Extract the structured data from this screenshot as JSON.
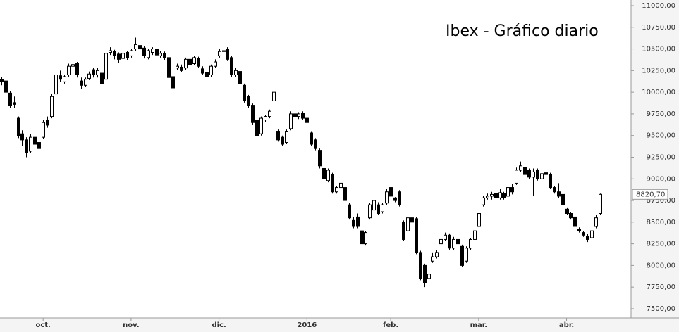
{
  "chart_data": {
    "type": "candlestick",
    "title": "Ibex - Gráfico diario",
    "up_color": "#ffffff",
    "down_color": "#000000",
    "line_color": "#000000",
    "xlim": [
      -0.3,
      150.4
    ],
    "xticks": [
      {
        "value": 10,
        "label": "oct."
      },
      {
        "value": 31,
        "label": "nov."
      },
      {
        "value": 52,
        "label": "dic."
      },
      {
        "value": 73,
        "label": "2016"
      },
      {
        "value": 93,
        "label": "feb."
      },
      {
        "value": 114,
        "label": "mar."
      },
      {
        "value": 135,
        "label": "abr."
      }
    ],
    "ylim": [
      7394,
      11065
    ],
    "yticks": [
      {
        "value": 7500,
        "label": "7500,00"
      },
      {
        "value": 7750,
        "label": "7750,00"
      },
      {
        "value": 8000,
        "label": "8000,00"
      },
      {
        "value": 8250,
        "label": "8250,00"
      },
      {
        "value": 8500,
        "label": "8500,00"
      },
      {
        "value": 8750,
        "label": "8750,00"
      },
      {
        "value": 9000,
        "label": "9000,00"
      },
      {
        "value": 9250,
        "label": "9250,00"
      },
      {
        "value": 9500,
        "label": "9500,00"
      },
      {
        "value": 9750,
        "label": "9750,00"
      },
      {
        "value": 10000,
        "label": "10000,00"
      },
      {
        "value": 10250,
        "label": "10250,00"
      },
      {
        "value": 10500,
        "label": "10500,00"
      },
      {
        "value": 10750,
        "label": "10750,00"
      },
      {
        "value": 11000,
        "label": "11000,00"
      }
    ],
    "last_label": "8820,70",
    "candles": [
      [
        10150,
        10180,
        10080,
        10120
      ],
      [
        10130,
        10150,
        9980,
        10000
      ],
      [
        9990,
        10010,
        9820,
        9850
      ],
      [
        9880,
        9950,
        9820,
        9860
      ],
      [
        9700,
        9720,
        9470,
        9500
      ],
      [
        9520,
        9560,
        9380,
        9450
      ],
      [
        9450,
        9480,
        9250,
        9300
      ],
      [
        9320,
        9520,
        9300,
        9480
      ],
      [
        9480,
        9510,
        9370,
        9400
      ],
      [
        9420,
        9440,
        9260,
        9350
      ],
      [
        9480,
        9680,
        9460,
        9650
      ],
      [
        9680,
        9720,
        9590,
        9620
      ],
      [
        9720,
        9980,
        9700,
        9950
      ],
      [
        9980,
        10230,
        9960,
        10200
      ],
      [
        10190,
        10250,
        10120,
        10150
      ],
      [
        10120,
        10200,
        10100,
        10180
      ],
      [
        10200,
        10330,
        10180,
        10300
      ],
      [
        10300,
        10380,
        10280,
        10320
      ],
      [
        10330,
        10350,
        10170,
        10200
      ],
      [
        10130,
        10170,
        10040,
        10080
      ],
      [
        10080,
        10170,
        10060,
        10150
      ],
      [
        10160,
        10240,
        10140,
        10210
      ],
      [
        10260,
        10280,
        10170,
        10200
      ],
      [
        10200,
        10280,
        10170,
        10250
      ],
      [
        10220,
        10260,
        10060,
        10100
      ],
      [
        10150,
        10600,
        10130,
        10450
      ],
      [
        10460,
        10520,
        10430,
        10480
      ],
      [
        10470,
        10490,
        10380,
        10420
      ],
      [
        10440,
        10460,
        10340,
        10380
      ],
      [
        10390,
        10480,
        10360,
        10450
      ],
      [
        10460,
        10480,
        10370,
        10400
      ],
      [
        10420,
        10500,
        10400,
        10480
      ],
      [
        10500,
        10630,
        10480,
        10550
      ],
      [
        10540,
        10570,
        10470,
        10500
      ],
      [
        10510,
        10530,
        10390,
        10420
      ],
      [
        10400,
        10500,
        10380,
        10480
      ],
      [
        10460,
        10520,
        10430,
        10500
      ],
      [
        10500,
        10530,
        10400,
        10430
      ],
      [
        10420,
        10480,
        10400,
        10450
      ],
      [
        10450,
        10470,
        10370,
        10400
      ],
      [
        10400,
        10420,
        10140,
        10170
      ],
      [
        10180,
        10200,
        10020,
        10050
      ],
      [
        10280,
        10330,
        10260,
        10300
      ],
      [
        10290,
        10320,
        10230,
        10250
      ],
      [
        10280,
        10400,
        10260,
        10380
      ],
      [
        10380,
        10400,
        10300,
        10320
      ],
      [
        10330,
        10420,
        10310,
        10400
      ],
      [
        10390,
        10410,
        10280,
        10300
      ],
      [
        10270,
        10300,
        10200,
        10220
      ],
      [
        10230,
        10250,
        10140,
        10180
      ],
      [
        10200,
        10320,
        10180,
        10300
      ],
      [
        10300,
        10380,
        10280,
        10350
      ],
      [
        10420,
        10500,
        10400,
        10470
      ],
      [
        10470,
        10520,
        10440,
        10480
      ],
      [
        10500,
        10520,
        10360,
        10380
      ],
      [
        10400,
        10420,
        10180,
        10200
      ],
      [
        10200,
        10280,
        10180,
        10250
      ],
      [
        10240,
        10260,
        10080,
        10100
      ],
      [
        10080,
        10100,
        9880,
        9900
      ],
      [
        9950,
        9970,
        9820,
        9850
      ],
      [
        9850,
        9870,
        9620,
        9650
      ],
      [
        9680,
        9700,
        9480,
        9500
      ],
      [
        9520,
        9720,
        9500,
        9700
      ],
      [
        9680,
        9740,
        9660,
        9720
      ],
      [
        9720,
        9800,
        9700,
        9780
      ],
      [
        9900,
        10050,
        9880,
        10000
      ],
      [
        9550,
        9570,
        9430,
        9450
      ],
      [
        9480,
        9500,
        9380,
        9400
      ],
      [
        9420,
        9570,
        9400,
        9550
      ],
      [
        9580,
        9780,
        9560,
        9750
      ],
      [
        9750,
        9770,
        9700,
        9720
      ],
      [
        9720,
        9770,
        9690,
        9750
      ],
      [
        9760,
        9780,
        9680,
        9700
      ],
      [
        9700,
        9720,
        9630,
        9650
      ],
      [
        9530,
        9550,
        9380,
        9400
      ],
      [
        9450,
        9470,
        9330,
        9350
      ],
      [
        9330,
        9350,
        9120,
        9150
      ],
      [
        9120,
        9140,
        8980,
        9000
      ],
      [
        8980,
        9120,
        8960,
        9100
      ],
      [
        9050,
        9070,
        8830,
        8850
      ],
      [
        8850,
        8920,
        8830,
        8900
      ],
      [
        8900,
        8970,
        8880,
        8950
      ],
      [
        8900,
        8920,
        8730,
        8750
      ],
      [
        8700,
        8720,
        8530,
        8550
      ],
      [
        8520,
        8560,
        8430,
        8450
      ],
      [
        8560,
        8600,
        8430,
        8450
      ],
      [
        8400,
        8420,
        8200,
        8250
      ],
      [
        8250,
        8400,
        8230,
        8380
      ],
      [
        8550,
        8720,
        8530,
        8700
      ],
      [
        8640,
        8780,
        8620,
        8750
      ],
      [
        8700,
        8730,
        8580,
        8600
      ],
      [
        8620,
        8720,
        8600,
        8700
      ],
      [
        8720,
        8880,
        8700,
        8850
      ],
      [
        8900,
        8940,
        8780,
        8800
      ],
      [
        8780,
        8790,
        8730,
        8750
      ],
      [
        8850,
        8870,
        8680,
        8700
      ],
      [
        8500,
        8520,
        8280,
        8300
      ],
      [
        8400,
        8570,
        8380,
        8550
      ],
      [
        8550,
        8600,
        8480,
        8500
      ],
      [
        8540,
        8560,
        8130,
        8150
      ],
      [
        8150,
        8170,
        7830,
        7850
      ],
      [
        8000,
        8020,
        7750,
        7800
      ],
      [
        7850,
        7920,
        7830,
        7900
      ],
      [
        8050,
        8150,
        8030,
        8100
      ],
      [
        8100,
        8180,
        8080,
        8150
      ],
      [
        8250,
        8400,
        8230,
        8300
      ],
      [
        8300,
        8380,
        8280,
        8350
      ],
      [
        8350,
        8370,
        8180,
        8200
      ],
      [
        8200,
        8330,
        8180,
        8300
      ],
      [
        8300,
        8320,
        8230,
        8250
      ],
      [
        8220,
        8240,
        7980,
        8000
      ],
      [
        8050,
        8220,
        8030,
        8200
      ],
      [
        8200,
        8320,
        8180,
        8300
      ],
      [
        8300,
        8430,
        8280,
        8400
      ],
      [
        8450,
        8620,
        8430,
        8600
      ],
      [
        8700,
        8800,
        8680,
        8780
      ],
      [
        8780,
        8830,
        8760,
        8800
      ],
      [
        8800,
        8850,
        8760,
        8820
      ],
      [
        8830,
        8860,
        8770,
        8780
      ],
      [
        8780,
        8880,
        8760,
        8840
      ],
      [
        8830,
        8850,
        8760,
        8780
      ],
      [
        8800,
        9020,
        8780,
        8900
      ],
      [
        8900,
        8940,
        8820,
        8850
      ],
      [
        8950,
        9130,
        8930,
        9100
      ],
      [
        9100,
        9200,
        9080,
        9150
      ],
      [
        9130,
        9150,
        9030,
        9050
      ],
      [
        9100,
        9120,
        9000,
        9020
      ],
      [
        9020,
        9120,
        8800,
        9080
      ],
      [
        9100,
        9120,
        8980,
        9000
      ],
      [
        9000,
        9130,
        8980,
        9060
      ],
      [
        9070,
        9090,
        9030,
        9050
      ],
      [
        9050,
        9070,
        8880,
        8900
      ],
      [
        8900,
        8920,
        8830,
        8850
      ],
      [
        8850,
        8950,
        8780,
        8800
      ],
      [
        8820,
        8830,
        8680,
        8700
      ],
      [
        8650,
        8670,
        8580,
        8600
      ],
      [
        8600,
        8620,
        8530,
        8550
      ],
      [
        8560,
        8580,
        8430,
        8450
      ],
      [
        8420,
        8440,
        8380,
        8400
      ],
      [
        8380,
        8400,
        8330,
        8350
      ],
      [
        8340,
        8360,
        8270,
        8300
      ],
      [
        8320,
        8420,
        8300,
        8400
      ],
      [
        8450,
        8580,
        8430,
        8550
      ],
      [
        8600,
        8830,
        8580,
        8820.7
      ]
    ]
  }
}
